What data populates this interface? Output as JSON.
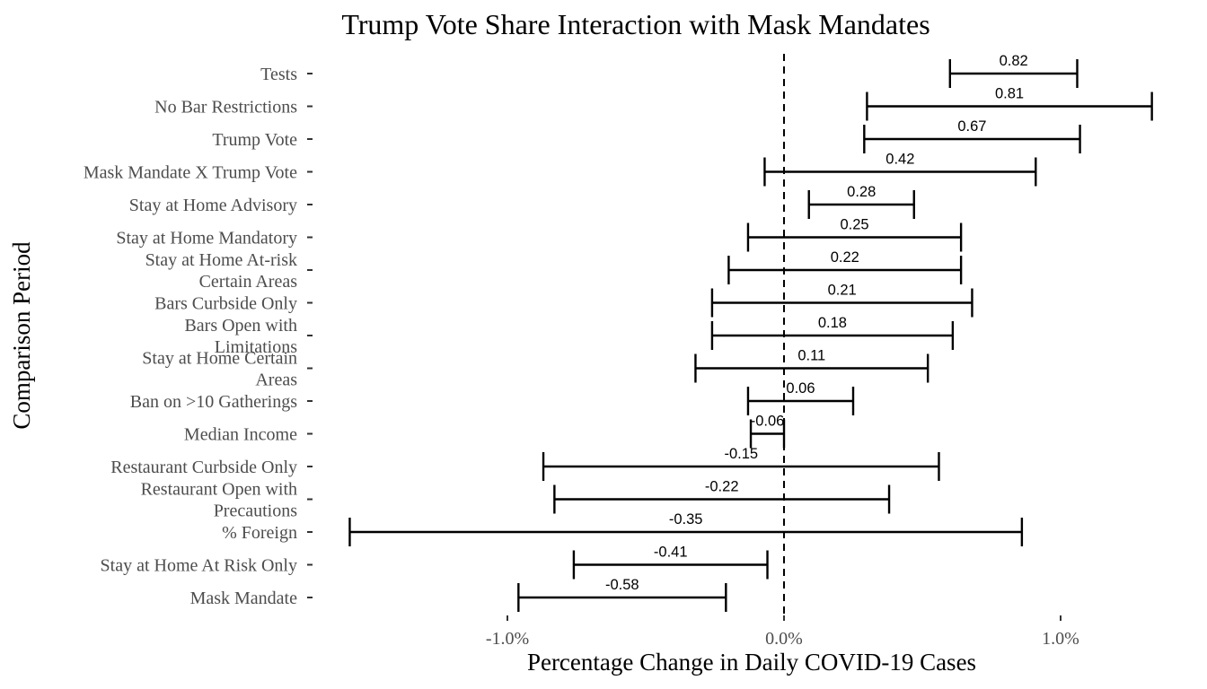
{
  "chart_data": {
    "type": "errorbar",
    "title": "Trump Vote Share Interaction with Mask Mandates",
    "xlabel": "Percentage Change in Daily COVID-19 Cases",
    "ylabel": "Comparison Period",
    "xlim": [
      -0.99,
      1.36
    ],
    "x_ticks": [
      {
        "value": -1.0,
        "label": "-1.0%"
      },
      {
        "value": 0.0,
        "label": "0.0%"
      },
      {
        "value": 1.0,
        "label": "1.0%"
      }
    ],
    "reference_line": {
      "value": 0.0,
      "style": "dashed"
    },
    "grid": false,
    "legend": "none",
    "series": [
      {
        "category": [
          "Tests"
        ],
        "estimate": 0.82,
        "estimate_label": "0.82",
        "low": 0.6,
        "high": 1.06
      },
      {
        "category": [
          "No Bar Restrictions"
        ],
        "estimate": 0.81,
        "estimate_label": "0.81",
        "low": 0.3,
        "high": 1.33
      },
      {
        "category": [
          "Trump Vote"
        ],
        "estimate": 0.67,
        "estimate_label": "0.67",
        "low": 0.29,
        "high": 1.07
      },
      {
        "category": [
          "Mask Mandate X Trump Vote"
        ],
        "estimate": 0.42,
        "estimate_label": "0.42",
        "low": -0.07,
        "high": 0.91
      },
      {
        "category": [
          "Stay at Home Advisory"
        ],
        "estimate": 0.28,
        "estimate_label": "0.28",
        "low": 0.09,
        "high": 0.47
      },
      {
        "category": [
          "Stay at Home Mandatory"
        ],
        "estimate": 0.25,
        "estimate_label": "0.25",
        "low": -0.13,
        "high": 0.64
      },
      {
        "category": [
          "Stay at Home At-risk",
          "Certain Areas"
        ],
        "estimate": 0.22,
        "estimate_label": "0.22",
        "low": -0.2,
        "high": 0.64
      },
      {
        "category": [
          "Bars Curbside Only"
        ],
        "estimate": 0.21,
        "estimate_label": "0.21",
        "low": -0.26,
        "high": 0.68
      },
      {
        "category": [
          "Bars Open with",
          "Limitations"
        ],
        "estimate": 0.18,
        "estimate_label": "0.18",
        "low": -0.26,
        "high": 0.61
      },
      {
        "category": [
          "Stay at Home Certain",
          "Areas"
        ],
        "estimate": 0.11,
        "estimate_label": "0.11",
        "low": -0.32,
        "high": 0.52
      },
      {
        "category": [
          "Ban on >10 Gatherings"
        ],
        "estimate": 0.06,
        "estimate_label": "0.06",
        "low": -0.13,
        "high": 0.25
      },
      {
        "category": [
          "Median Income"
        ],
        "estimate": -0.06,
        "estimate_label": "-0.06",
        "low": -0.12,
        "high": 0.0
      },
      {
        "category": [
          "Restaurant Curbside Only"
        ],
        "estimate": -0.15,
        "estimate_label": "-0.15",
        "low": -0.87,
        "high": 0.56
      },
      {
        "category": [
          "Restaurant Open with",
          "Precautions"
        ],
        "estimate": -0.22,
        "estimate_label": "-0.22",
        "low": -0.83,
        "high": 0.38
      },
      {
        "category": [
          "% Foreign"
        ],
        "estimate": -0.35,
        "estimate_label": "-0.35",
        "low": -1.57,
        "high": 0.86
      },
      {
        "category": [
          "Stay at Home At Risk Only"
        ],
        "estimate": -0.41,
        "estimate_label": "-0.41",
        "low": -0.76,
        "high": -0.06
      },
      {
        "category": [
          "Mask Mandate"
        ],
        "estimate": -0.58,
        "estimate_label": "-0.58",
        "low": -0.96,
        "high": -0.21
      }
    ]
  }
}
